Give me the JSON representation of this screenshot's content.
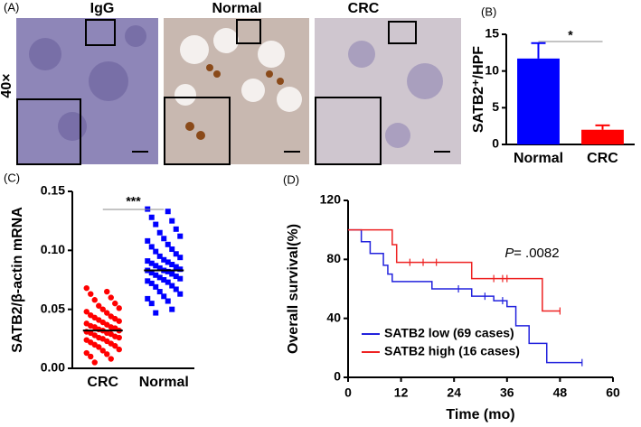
{
  "panels": [
    "(A)",
    "(B)",
    "(C)",
    "(D)"
  ],
  "images": {
    "labels": [
      "IgG",
      "Normal",
      "CRC"
    ],
    "magnification": "40×"
  },
  "chart_data": [
    {
      "type": "bar",
      "ylabel": "SATB2⁺/HPF",
      "categories": [
        "Normal",
        "CRC"
      ],
      "values": [
        11.7,
        2.0
      ],
      "errors": [
        2.1,
        0.6
      ],
      "colors": [
        "#0000ff",
        "#ff0000"
      ],
      "ylim": [
        0,
        15
      ],
      "yticks": [
        0,
        5,
        10,
        15
      ],
      "annotation": "*"
    },
    {
      "type": "strip",
      "ylabel": "SATB2/β-actin mRNA",
      "annotation": "***",
      "ylim": [
        0,
        0.15
      ],
      "yticks": [
        {
          "value": 0,
          "label": "0.00"
        },
        {
          "value": 0.05,
          "label": "0.05"
        },
        {
          "value": 0.1,
          "label": "0.10"
        },
        {
          "value": 0.15,
          "label": "0.15"
        }
      ],
      "series": [
        {
          "name": "CRC",
          "color": "#ff0000",
          "marker": "circle",
          "mean": 0.032,
          "values": [
            0.068,
            0.065,
            0.063,
            0.06,
            0.058,
            0.055,
            0.053,
            0.051,
            0.05,
            0.048,
            0.047,
            0.045,
            0.044,
            0.043,
            0.042,
            0.041,
            0.04,
            0.039,
            0.038,
            0.037,
            0.036,
            0.035,
            0.035,
            0.034,
            0.033,
            0.032,
            0.032,
            0.031,
            0.03,
            0.03,
            0.029,
            0.028,
            0.027,
            0.026,
            0.026,
            0.025,
            0.024,
            0.023,
            0.022,
            0.021,
            0.02,
            0.019,
            0.018,
            0.016,
            0.015,
            0.013,
            0.012,
            0.01,
            0.008,
            0.005
          ]
        },
        {
          "name": "Normal",
          "color": "#0000ff",
          "marker": "square",
          "mean": 0.083,
          "values": [
            0.135,
            0.133,
            0.128,
            0.125,
            0.122,
            0.118,
            0.115,
            0.112,
            0.11,
            0.108,
            0.105,
            0.103,
            0.101,
            0.099,
            0.097,
            0.095,
            0.094,
            0.092,
            0.091,
            0.09,
            0.089,
            0.088,
            0.087,
            0.086,
            0.085,
            0.084,
            0.083,
            0.083,
            0.082,
            0.081,
            0.08,
            0.079,
            0.078,
            0.077,
            0.076,
            0.075,
            0.074,
            0.073,
            0.072,
            0.07,
            0.069,
            0.067,
            0.065,
            0.063,
            0.061,
            0.059,
            0.057,
            0.055,
            0.05,
            0.047
          ]
        }
      ]
    },
    {
      "type": "step",
      "xlabel": "Time (mo)",
      "ylabel": "Overall survival(%)",
      "annotation_p": "P",
      "annotation_value": "= .0082",
      "xlim": [
        0,
        60
      ],
      "xticks": [
        0,
        12,
        24,
        36,
        48,
        60
      ],
      "ylim": [
        0,
        120
      ],
      "yticks": [
        0,
        40,
        80,
        120
      ],
      "legend": "lower left",
      "series": [
        {
          "name": "SATB2 low (69 cases)",
          "color": "#2222dd",
          "x": [
            0,
            3,
            3,
            5,
            5,
            8,
            8,
            9,
            9,
            10,
            10,
            19,
            19,
            28,
            28,
            33,
            33,
            36,
            36,
            38,
            38,
            41,
            41,
            45,
            45,
            53
          ],
          "y": [
            100,
            100,
            92,
            92,
            84,
            84,
            76,
            76,
            70,
            70,
            65,
            65,
            60,
            60,
            55,
            55,
            52,
            52,
            48,
            48,
            35,
            35,
            23,
            23,
            10,
            10
          ],
          "censored_x": [
            25,
            31,
            35,
            53
          ],
          "censored_y": [
            60,
            55,
            52,
            10
          ]
        },
        {
          "name": "SATB2 high (16 cases)",
          "color": "#ee2222",
          "x": [
            0,
            10,
            10,
            11,
            11,
            28,
            28,
            44,
            44,
            48
          ],
          "y": [
            100,
            100,
            90,
            90,
            78,
            78,
            67,
            67,
            45,
            45
          ],
          "censored_x": [
            14,
            17,
            20,
            33,
            35,
            36,
            48
          ],
          "censored_y": [
            78,
            78,
            78,
            67,
            67,
            67,
            45
          ]
        }
      ]
    }
  ]
}
